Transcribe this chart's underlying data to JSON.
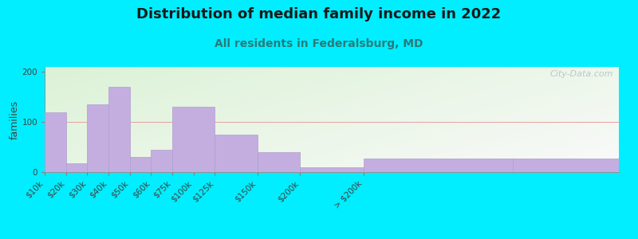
{
  "title": "Distribution of median family income in 2022",
  "subtitle": "All residents in Federalsburg, MD",
  "ylabel": "families",
  "title_color": "#1a1a1a",
  "subtitle_color": "#2a7a7a",
  "bar_color": "#c4aee0",
  "bar_edge_color": "#b09cd0",
  "bg_outer": "#00eeff",
  "bg_green": [
    0.86,
    0.95,
    0.84
  ],
  "bg_white": [
    0.98,
    0.98,
    0.98
  ],
  "grid_color": "#e8a0a0",
  "title_fontsize": 13,
  "subtitle_fontsize": 10,
  "ylabel_fontsize": 9,
  "tick_fontsize": 7.5,
  "ylim": [
    0,
    210
  ],
  "yticks": [
    0,
    100,
    200
  ],
  "watermark": "City-Data.com",
  "bar_heights": [
    120,
    18,
    135,
    170,
    30,
    45,
    130,
    75,
    40,
    10,
    27,
    27
  ],
  "bar_lefts": [
    0,
    1,
    2,
    3,
    4,
    5,
    6,
    8,
    10,
    12,
    15,
    22
  ],
  "bar_widths": [
    1,
    1,
    1,
    1,
    1,
    1,
    2,
    2,
    2,
    3,
    7,
    5
  ],
  "tick_positions": [
    0,
    1,
    2,
    3,
    4,
    5,
    6,
    7,
    8,
    10,
    12,
    15,
    22,
    27
  ],
  "tick_labels": [
    "$10k",
    "$20k",
    "$30k",
    "$40k",
    "$50k",
    "$60k",
    "$75k",
    "$100k",
    "$125k",
    "$150k",
    "$200k",
    "> $200k",
    "",
    ""
  ],
  "xlim": [
    0,
    27
  ]
}
